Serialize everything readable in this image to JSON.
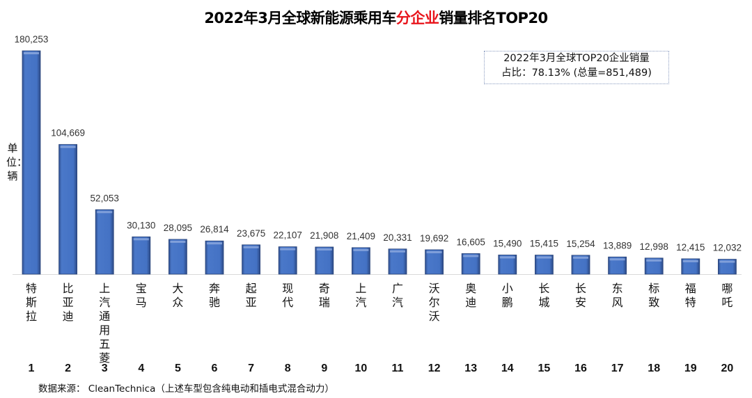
{
  "chart_data": {
    "type": "bar",
    "title_parts": [
      "2022年3月全球新能源乘用车",
      "分企业",
      "销量排名TOP20"
    ],
    "title": "2022年3月全球新能源乘用车分企业销量排名TOP20",
    "ylabel": "单位：辆",
    "xlabel": "",
    "categories": [
      "特斯拉",
      "比亚迪",
      "上汽通用五菱",
      "宝马",
      "大众",
      "奔驰",
      "起亚",
      "现代",
      "奇瑞",
      "上汽",
      "广汽",
      "沃尔沃",
      "奥迪",
      "小鹏",
      "长城",
      "长安",
      "东风",
      "标致",
      "福特",
      "哪吒"
    ],
    "ranks": [
      "1",
      "2",
      "3",
      "4",
      "5",
      "6",
      "7",
      "8",
      "9",
      "10",
      "11",
      "12",
      "13",
      "14",
      "15",
      "16",
      "17",
      "18",
      "19",
      "20"
    ],
    "values": [
      180253,
      104669,
      52053,
      30130,
      28095,
      26814,
      23675,
      22107,
      21908,
      21409,
      20331,
      19692,
      16605,
      15490,
      15415,
      15254,
      13889,
      12998,
      12415,
      12032
    ],
    "value_labels": [
      "180,253",
      "104,669",
      "52,053",
      "30,130",
      "28,095",
      "26,814",
      "23,675",
      "22,107",
      "21,908",
      "21,409",
      "20,331",
      "19,692",
      "16,605",
      "15,490",
      "15,415",
      "15,254",
      "13,889",
      "12,998",
      "12,415",
      "12,032"
    ],
    "ylim": [
      0,
      180253
    ],
    "grid": false,
    "bar_color": "#4472c4",
    "highlight_color": "#e8141b",
    "annotation": {
      "line1": "2022年3月全球TOP20企业销量",
      "line2": "占比：78.13% (总量=851,489)"
    },
    "source": "数据来源： CleanTechnica（上述车型包含纯电动和插电式混合动力）"
  }
}
